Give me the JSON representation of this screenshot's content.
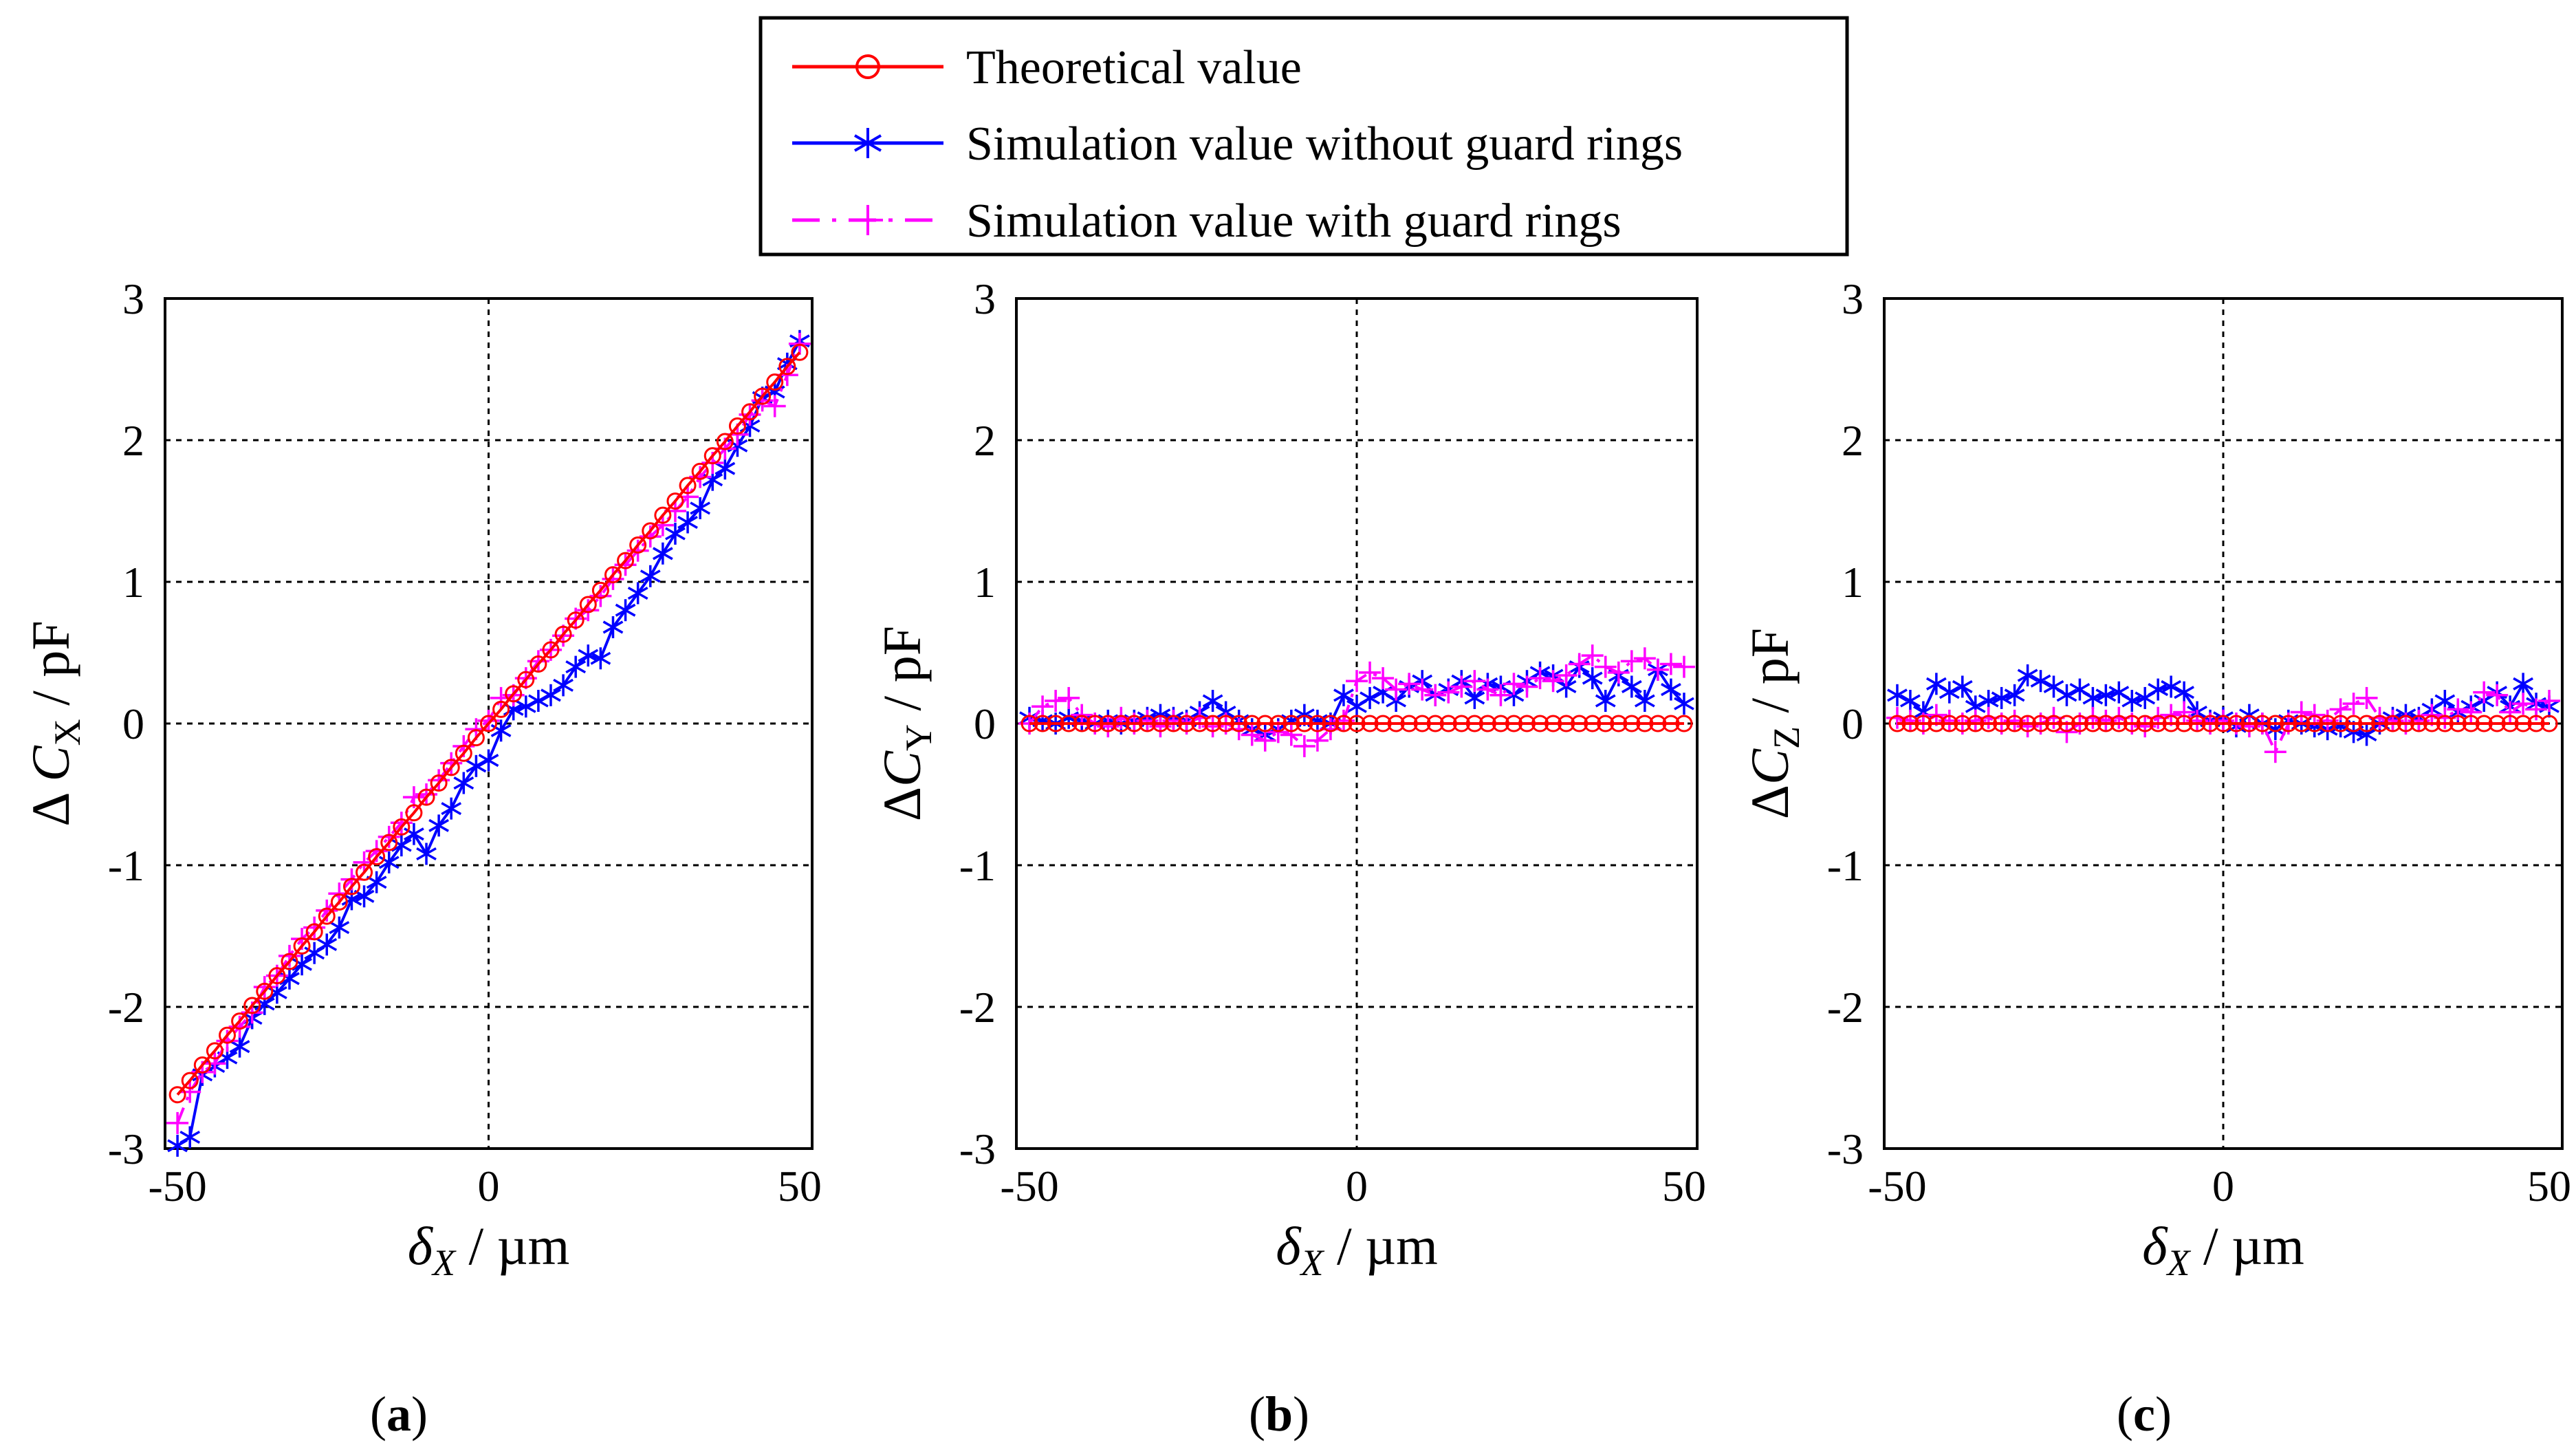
{
  "legend": {
    "items": [
      {
        "label": "Theoretical value",
        "color": "#ff0000",
        "marker": "circle",
        "line": "solid"
      },
      {
        "label": "Simulation value without guard rings",
        "color": "#0000ff",
        "marker": "star",
        "line": "solid"
      },
      {
        "label": "Simulation value with guard rings",
        "color": "#ff00ff",
        "marker": "plus",
        "line": "dash-dot"
      }
    ]
  },
  "chart_data": [
    {
      "type": "line",
      "panel": "a",
      "caption_letter": "a",
      "xlabel_main": "δ",
      "xlabel_sub": "X",
      "xlabel_rest": "/ µm",
      "ylabel_main": "Δ C",
      "ylabel_sub": "X",
      "ylabel_rest": " / pF",
      "xlim": [
        -52,
        52
      ],
      "ylim": [
        -3,
        3
      ],
      "xticks": [
        -50,
        0,
        50
      ],
      "yticks": [
        -3,
        -2,
        -1,
        0,
        1,
        2,
        3
      ],
      "xtick_labels": [
        "-50",
        "0",
        "50"
      ],
      "ytick_labels": [
        "-3",
        "-2",
        "-1",
        "0",
        "1",
        "2",
        "3"
      ],
      "grid": true,
      "x": [
        -50,
        -48,
        -46,
        -44,
        -42,
        -40,
        -38,
        -36,
        -34,
        -32,
        -30,
        -28,
        -26,
        -24,
        -22,
        -20,
        -18,
        -16,
        -14,
        -12,
        -10,
        -8,
        -6,
        -4,
        -2,
        0,
        2,
        4,
        6,
        8,
        10,
        12,
        14,
        16,
        18,
        20,
        22,
        24,
        26,
        28,
        30,
        32,
        34,
        36,
        38,
        40,
        42,
        44,
        46,
        48,
        50
      ],
      "series": [
        {
          "name": "Theoretical value",
          "values": [
            -2.62,
            -2.52,
            -2.41,
            -2.31,
            -2.2,
            -2.1,
            -1.99,
            -1.89,
            -1.78,
            -1.68,
            -1.57,
            -1.47,
            -1.36,
            -1.26,
            -1.15,
            -1.05,
            -0.94,
            -0.84,
            -0.73,
            -0.63,
            -0.52,
            -0.42,
            -0.31,
            -0.21,
            -0.1,
            0.0,
            0.1,
            0.21,
            0.31,
            0.42,
            0.52,
            0.63,
            0.73,
            0.84,
            0.94,
            1.05,
            1.15,
            1.26,
            1.36,
            1.47,
            1.57,
            1.68,
            1.78,
            1.89,
            1.99,
            2.1,
            2.2,
            2.31,
            2.41,
            2.52,
            2.62
          ]
        },
        {
          "name": "Simulation value without guard rings",
          "values": [
            -2.98,
            -2.92,
            -2.48,
            -2.42,
            -2.36,
            -2.28,
            -2.08,
            -1.98,
            -1.9,
            -1.8,
            -1.7,
            -1.62,
            -1.56,
            -1.44,
            -1.24,
            -1.22,
            -1.12,
            -0.98,
            -0.86,
            -0.78,
            -0.92,
            -0.72,
            -0.6,
            -0.42,
            -0.3,
            -0.26,
            -0.05,
            0.1,
            0.12,
            0.16,
            0.2,
            0.27,
            0.4,
            0.48,
            0.46,
            0.68,
            0.8,
            0.92,
            1.04,
            1.2,
            1.34,
            1.42,
            1.52,
            1.72,
            1.8,
            1.96,
            2.1,
            2.3,
            2.34,
            2.54,
            2.7
          ]
        },
        {
          "name": "Simulation value with guard rings",
          "values": [
            -2.82,
            -2.6,
            -2.46,
            -2.4,
            -2.24,
            -2.14,
            -2.04,
            -1.86,
            -1.78,
            -1.64,
            -1.52,
            -1.44,
            -1.32,
            -1.2,
            -1.1,
            -0.98,
            -0.9,
            -0.8,
            -0.7,
            -0.52,
            -0.5,
            -0.4,
            -0.28,
            -0.16,
            -0.04,
            0.02,
            0.18,
            0.2,
            0.32,
            0.44,
            0.52,
            0.62,
            0.74,
            0.8,
            0.9,
            1.02,
            1.12,
            1.22,
            1.32,
            1.4,
            1.5,
            1.6,
            1.74,
            1.84,
            1.94,
            2.04,
            2.18,
            2.28,
            2.24,
            2.46,
            2.68
          ]
        }
      ]
    },
    {
      "type": "line",
      "panel": "b",
      "caption_letter": "b",
      "xlabel_main": "δ",
      "xlabel_sub": "X",
      "xlabel_rest": "/ µm",
      "ylabel_main": "ΔC",
      "ylabel_sub": "Y",
      "ylabel_rest": " / pF",
      "xlim": [
        -52,
        52
      ],
      "ylim": [
        -3,
        3
      ],
      "xticks": [
        -50,
        0,
        50
      ],
      "yticks": [
        -3,
        -2,
        -1,
        0,
        1,
        2,
        3
      ],
      "xtick_labels": [
        "-50",
        "0",
        "50"
      ],
      "ytick_labels": [
        "-3",
        "-2",
        "-1",
        "0",
        "1",
        "2",
        "3"
      ],
      "grid": true,
      "x": [
        -50,
        -48,
        -46,
        -44,
        -42,
        -40,
        -38,
        -36,
        -34,
        -32,
        -30,
        -28,
        -26,
        -24,
        -22,
        -20,
        -18,
        -16,
        -14,
        -12,
        -10,
        -8,
        -6,
        -4,
        -2,
        0,
        2,
        4,
        6,
        8,
        10,
        12,
        14,
        16,
        18,
        20,
        22,
        24,
        26,
        28,
        30,
        32,
        34,
        36,
        38,
        40,
        42,
        44,
        46,
        48,
        50
      ],
      "series": [
        {
          "name": "Theoretical value",
          "values": [
            0,
            0,
            0,
            0,
            0,
            0,
            0,
            0,
            0,
            0,
            0,
            0,
            0,
            0,
            0,
            0,
            0,
            0,
            0,
            0,
            0,
            0,
            0,
            0,
            0,
            0,
            0,
            0,
            0,
            0,
            0,
            0,
            0,
            0,
            0,
            0,
            0,
            0,
            0,
            0,
            0,
            0,
            0,
            0,
            0,
            0,
            0,
            0,
            0,
            0,
            0
          ]
        },
        {
          "name": "Simulation value without guard rings",
          "values": [
            0.04,
            0.02,
            0.0,
            0.04,
            0.02,
            0.0,
            0.02,
            0.0,
            0.02,
            0.04,
            0.06,
            0.04,
            0.02,
            0.08,
            0.16,
            0.08,
            0.02,
            -0.04,
            -0.08,
            -0.04,
            0.02,
            0.06,
            0.02,
            0.0,
            0.2,
            0.12,
            0.18,
            0.22,
            0.16,
            0.26,
            0.3,
            0.2,
            0.24,
            0.3,
            0.18,
            0.28,
            0.26,
            0.2,
            0.3,
            0.36,
            0.34,
            0.26,
            0.4,
            0.32,
            0.16,
            0.34,
            0.26,
            0.16,
            0.38,
            0.24,
            0.14
          ]
        },
        {
          "name": "Simulation value with guard rings",
          "values": [
            0.0,
            0.12,
            0.16,
            0.18,
            0.06,
            0.0,
            -0.02,
            0.04,
            0.0,
            0.02,
            -0.02,
            0.02,
            0.0,
            0.04,
            -0.02,
            0.0,
            -0.04,
            -0.08,
            -0.12,
            -0.06,
            -0.08,
            -0.16,
            -0.12,
            -0.04,
            0.02,
            0.3,
            0.36,
            0.32,
            0.24,
            0.28,
            0.24,
            0.2,
            0.22,
            0.26,
            0.3,
            0.24,
            0.2,
            0.28,
            0.26,
            0.32,
            0.3,
            0.34,
            0.42,
            0.48,
            0.4,
            0.36,
            0.44,
            0.46,
            0.38,
            0.42,
            0.4
          ]
        }
      ]
    },
    {
      "type": "line",
      "panel": "c",
      "caption_letter": "c",
      "xlabel_main": "δ",
      "xlabel_sub": "X",
      "xlabel_rest": "/ µm",
      "ylabel_main": "ΔC",
      "ylabel_sub": "Z",
      "ylabel_rest": " / pF",
      "xlim": [
        -52,
        52
      ],
      "ylim": [
        -3,
        3
      ],
      "xticks": [
        -50,
        0,
        50
      ],
      "yticks": [
        -3,
        -2,
        -1,
        0,
        1,
        2,
        3
      ],
      "xtick_labels": [
        "-50",
        "0",
        "50"
      ],
      "ytick_labels": [
        "-3",
        "-2",
        "-1",
        "0",
        "1",
        "2",
        "3"
      ],
      "grid": true,
      "x": [
        -50,
        -48,
        -46,
        -44,
        -42,
        -40,
        -38,
        -36,
        -34,
        -32,
        -30,
        -28,
        -26,
        -24,
        -22,
        -20,
        -18,
        -16,
        -14,
        -12,
        -10,
        -8,
        -6,
        -4,
        -2,
        0,
        2,
        4,
        6,
        8,
        10,
        12,
        14,
        16,
        18,
        20,
        22,
        24,
        26,
        28,
        30,
        32,
        34,
        36,
        38,
        40,
        42,
        44,
        46,
        48,
        50
      ],
      "series": [
        {
          "name": "Theoretical value",
          "values": [
            0,
            0,
            0,
            0,
            0,
            0,
            0,
            0,
            0,
            0,
            0,
            0,
            0,
            0,
            0,
            0,
            0,
            0,
            0,
            0,
            0,
            0,
            0,
            0,
            0,
            0,
            0,
            0,
            0,
            0,
            0,
            0,
            0,
            0,
            0,
            0,
            0,
            0,
            0,
            0,
            0,
            0,
            0,
            0,
            0,
            0,
            0,
            0,
            0,
            0,
            0
          ]
        },
        {
          "name": "Simulation value without guard rings",
          "values": [
            0.2,
            0.16,
            0.08,
            0.28,
            0.22,
            0.26,
            0.12,
            0.16,
            0.18,
            0.2,
            0.34,
            0.3,
            0.26,
            0.2,
            0.24,
            0.18,
            0.2,
            0.22,
            0.16,
            0.18,
            0.24,
            0.26,
            0.22,
            0.08,
            0.02,
            0.04,
            -0.02,
            0.06,
            0.0,
            -0.04,
            0.02,
            0.0,
            -0.02,
            -0.04,
            -0.02,
            -0.06,
            -0.08,
            0.0,
            0.04,
            0.06,
            0.04,
            0.1,
            0.16,
            0.08,
            0.12,
            0.16,
            0.22,
            0.12,
            0.28,
            0.14,
            0.12
          ]
        },
        {
          "name": "Simulation value with guard rings",
          "values": [
            0.04,
            0.02,
            0.0,
            0.06,
            0.02,
            0.0,
            0.02,
            0.04,
            0.0,
            0.02,
            -0.02,
            0.0,
            0.04,
            -0.06,
            0.0,
            0.04,
            0.02,
            0.04,
            0.0,
            -0.02,
            0.04,
            0.06,
            0.08,
            0.02,
            0.0,
            0.02,
            0.0,
            -0.02,
            0.0,
            -0.2,
            0.0,
            0.08,
            0.06,
            0.02,
            0.1,
            0.14,
            0.18,
            0.04,
            0.02,
            0.0,
            0.02,
            0.06,
            0.04,
            0.1,
            0.08,
            0.22,
            0.2,
            0.08,
            0.14,
            0.1,
            0.16
          ]
        }
      ]
    }
  ]
}
